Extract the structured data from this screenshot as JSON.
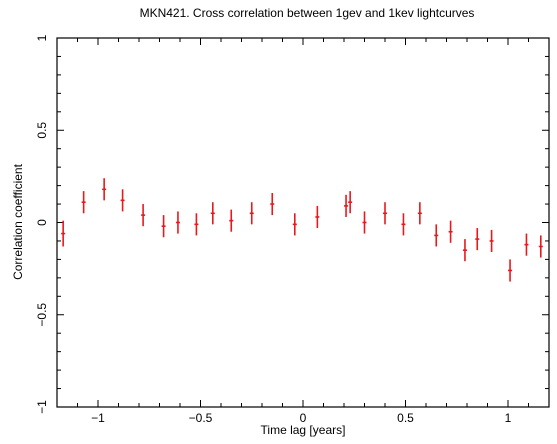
{
  "chart_data": {
    "type": "scatter",
    "title": "MKN421. Cross correlation between 1gev and 1kev lightcurves",
    "xlabel": "Time lag [years]",
    "ylabel": "Correlation coefficient",
    "xlim": [
      -1.2,
      1.2
    ],
    "ylim": [
      -1,
      1
    ],
    "xticks": [
      -1,
      -0.5,
      0,
      0.5,
      1
    ],
    "xtick_labels": [
      "−1",
      "−0.5",
      "0",
      "0.5",
      "1"
    ],
    "yticks": [
      -1,
      -0.5,
      0,
      0.5,
      1
    ],
    "ytick_labels": [
      "−1",
      "−0.5",
      "0",
      "0.5",
      "1"
    ],
    "grid": false,
    "marker_color": "#e8191c",
    "points": [
      {
        "x": -1.17,
        "y": -0.06,
        "err": 0.07
      },
      {
        "x": -1.07,
        "y": 0.11,
        "err": 0.06
      },
      {
        "x": -0.97,
        "y": 0.18,
        "err": 0.06
      },
      {
        "x": -0.88,
        "y": 0.12,
        "err": 0.06
      },
      {
        "x": -0.78,
        "y": 0.04,
        "err": 0.06
      },
      {
        "x": -0.68,
        "y": -0.02,
        "err": 0.06
      },
      {
        "x": -0.61,
        "y": 0.0,
        "err": 0.06
      },
      {
        "x": -0.52,
        "y": -0.01,
        "err": 0.06
      },
      {
        "x": -0.44,
        "y": 0.05,
        "err": 0.06
      },
      {
        "x": -0.35,
        "y": 0.01,
        "err": 0.06
      },
      {
        "x": -0.25,
        "y": 0.05,
        "err": 0.06
      },
      {
        "x": -0.15,
        "y": 0.1,
        "err": 0.06
      },
      {
        "x": -0.04,
        "y": -0.01,
        "err": 0.06
      },
      {
        "x": 0.07,
        "y": 0.03,
        "err": 0.06
      },
      {
        "x": 0.21,
        "y": 0.09,
        "err": 0.06
      },
      {
        "x": 0.23,
        "y": 0.11,
        "err": 0.06
      },
      {
        "x": 0.3,
        "y": 0.0,
        "err": 0.06
      },
      {
        "x": 0.4,
        "y": 0.05,
        "err": 0.06
      },
      {
        "x": 0.49,
        "y": -0.01,
        "err": 0.06
      },
      {
        "x": 0.57,
        "y": 0.05,
        "err": 0.06
      },
      {
        "x": 0.65,
        "y": -0.07,
        "err": 0.06
      },
      {
        "x": 0.72,
        "y": -0.05,
        "err": 0.06
      },
      {
        "x": 0.79,
        "y": -0.15,
        "err": 0.06
      },
      {
        "x": 0.85,
        "y": -0.09,
        "err": 0.06
      },
      {
        "x": 0.92,
        "y": -0.1,
        "err": 0.06
      },
      {
        "x": 1.01,
        "y": -0.26,
        "err": 0.06
      },
      {
        "x": 1.09,
        "y": -0.12,
        "err": 0.06
      },
      {
        "x": 1.16,
        "y": -0.13,
        "err": 0.06
      }
    ]
  }
}
